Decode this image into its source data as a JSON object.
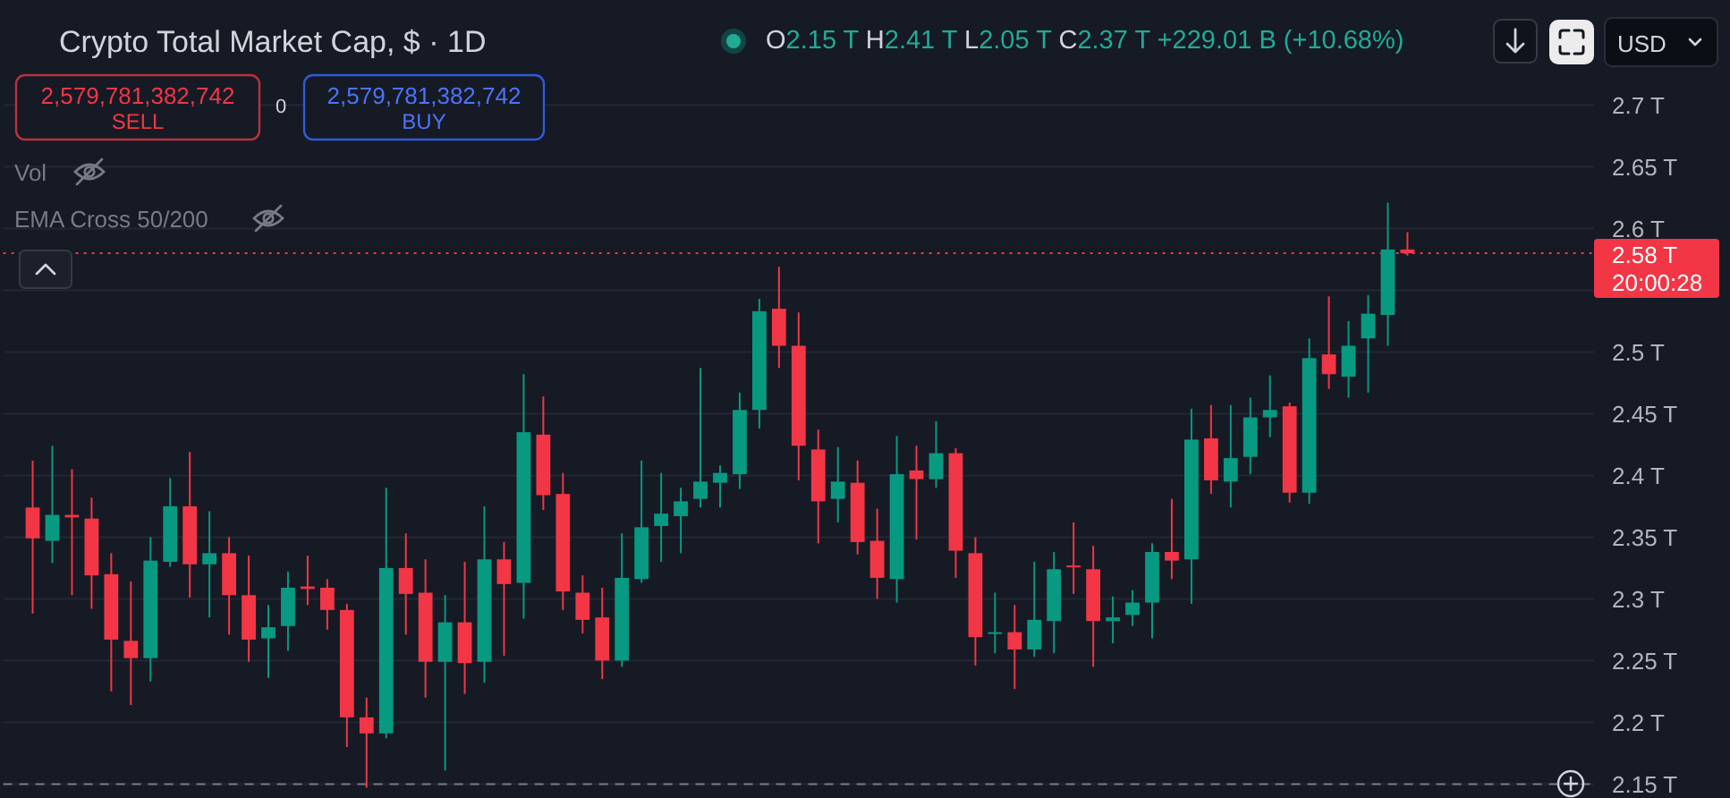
{
  "chart_data": {
    "type": "candlestick",
    "title": "Crypto Total Market Cap, $ · 1D",
    "subtitle": "O2.15 T H2.41 T L2.05 T C2.37 T +229.01 B (+10.68%)",
    "categories": [
      null,
      null,
      null,
      null,
      null,
      null,
      null,
      null,
      null,
      null,
      null,
      null,
      null,
      null,
      null,
      null,
      null,
      null,
      null,
      null,
      null,
      null,
      null,
      null,
      null,
      null,
      null,
      null,
      null,
      null,
      null,
      null,
      null,
      null,
      null,
      null,
      null,
      null,
      null,
      null,
      null,
      null,
      null,
      null,
      null,
      null,
      null,
      null,
      null,
      null,
      null,
      null,
      null,
      null,
      null,
      null,
      null,
      null,
      null,
      null,
      null,
      null,
      null,
      null,
      null,
      null,
      null,
      null,
      null,
      null,
      null,
      null,
      null,
      null,
      null,
      null,
      null,
      null,
      null,
      null,
      null
    ],
    "ohlc": [
      null,
      [
        2.374,
        2.412,
        2.288,
        2.349
      ],
      [
        2.347,
        2.424,
        2.329,
        2.368
      ],
      [
        2.368,
        2.405,
        2.303,
        2.366
      ],
      [
        2.365,
        2.382,
        2.292,
        2.319
      ],
      [
        2.32,
        2.337,
        2.225,
        2.267
      ],
      [
        2.266,
        2.314,
        2.214,
        2.252
      ],
      [
        2.252,
        2.35,
        2.233,
        2.331
      ],
      [
        2.33,
        2.398,
        2.326,
        2.375
      ],
      [
        2.375,
        2.419,
        2.301,
        2.328
      ],
      [
        2.328,
        2.371,
        2.285,
        2.337
      ],
      [
        2.337,
        2.35,
        2.271,
        2.303
      ],
      [
        2.303,
        2.335,
        2.249,
        2.267
      ],
      [
        2.268,
        2.295,
        2.236,
        2.277
      ],
      [
        2.278,
        2.322,
        2.258,
        2.309
      ],
      [
        2.31,
        2.335,
        2.295,
        2.308
      ],
      [
        2.309,
        2.316,
        2.275,
        2.291
      ],
      [
        2.291,
        2.296,
        2.18,
        2.204
      ],
      [
        2.204,
        2.22,
        2.147,
        2.191
      ],
      [
        2.191,
        2.39,
        2.187,
        2.325
      ],
      [
        2.325,
        2.353,
        2.271,
        2.304
      ],
      [
        2.305,
        2.332,
        2.22,
        2.249
      ],
      [
        2.249,
        2.303,
        2.161,
        2.281
      ],
      [
        2.281,
        2.33,
        2.223,
        2.248
      ],
      [
        2.249,
        2.375,
        2.232,
        2.332
      ],
      [
        2.332,
        2.346,
        2.254,
        2.312
      ],
      [
        2.313,
        2.482,
        2.284,
        2.435
      ],
      [
        2.433,
        2.464,
        2.372,
        2.384
      ],
      [
        2.385,
        2.402,
        2.291,
        2.306
      ],
      [
        2.305,
        2.319,
        2.272,
        2.283
      ],
      [
        2.285,
        2.309,
        2.235,
        2.25
      ],
      [
        2.25,
        2.353,
        2.245,
        2.317
      ],
      [
        2.316,
        2.412,
        2.313,
        2.358
      ],
      [
        2.359,
        2.402,
        2.33,
        2.369
      ],
      [
        2.367,
        2.39,
        2.337,
        2.379
      ],
      [
        2.381,
        2.487,
        2.374,
        2.395
      ],
      [
        2.394,
        2.408,
        2.374,
        2.402
      ],
      [
        2.401,
        2.467,
        2.389,
        2.453
      ],
      [
        2.453,
        2.543,
        2.438,
        2.533
      ],
      [
        2.535,
        2.569,
        2.487,
        2.505
      ],
      [
        2.505,
        2.532,
        2.396,
        2.424
      ],
      [
        2.421,
        2.437,
        2.345,
        2.379
      ],
      [
        2.381,
        2.423,
        2.362,
        2.395
      ],
      [
        2.394,
        2.412,
        2.336,
        2.346
      ],
      [
        2.347,
        2.373,
        2.3,
        2.317
      ],
      [
        2.316,
        2.432,
        2.297,
        2.401
      ],
      [
        2.404,
        2.424,
        2.348,
        2.397
      ],
      [
        2.397,
        2.444,
        2.39,
        2.418
      ],
      [
        2.418,
        2.422,
        2.317,
        2.339
      ],
      [
        2.337,
        2.35,
        2.246,
        2.269
      ],
      [
        2.272,
        2.305,
        2.256,
        2.273
      ],
      [
        2.273,
        2.295,
        2.227,
        2.259
      ],
      [
        2.259,
        2.33,
        2.253,
        2.283
      ],
      [
        2.282,
        2.338,
        2.256,
        2.324
      ],
      [
        2.327,
        2.362,
        2.304,
        2.326
      ],
      [
        2.324,
        2.343,
        2.245,
        2.282
      ],
      [
        2.282,
        2.302,
        2.264,
        2.285
      ],
      [
        2.287,
        2.307,
        2.278,
        2.297
      ],
      [
        2.297,
        2.345,
        2.268,
        2.338
      ],
      [
        2.338,
        2.381,
        2.316,
        2.331
      ],
      [
        2.332,
        2.454,
        2.296,
        2.429
      ],
      [
        2.43,
        2.457,
        2.385,
        2.396
      ],
      [
        2.395,
        2.457,
        2.374,
        2.414
      ],
      [
        2.415,
        2.463,
        2.401,
        2.447
      ],
      [
        2.447,
        2.481,
        2.431,
        2.453
      ],
      [
        2.456,
        2.459,
        2.378,
        2.386
      ],
      [
        2.386,
        2.511,
        2.377,
        2.495
      ],
      [
        2.498,
        2.545,
        2.47,
        2.482
      ],
      [
        2.48,
        2.525,
        2.463,
        2.505
      ],
      [
        2.511,
        2.546,
        2.467,
        2.531
      ],
      [
        2.53,
        2.621,
        2.505,
        2.583
      ],
      [
        2.583,
        2.597,
        2.578,
        2.58
      ],
      null,
      null,
      null,
      null,
      null,
      null,
      null,
      null,
      null
    ],
    "colors": [
      null,
      "#f23645",
      "#089981",
      "#f23645",
      "#f23645",
      "#f23645",
      "#f23645",
      "#089981",
      "#089981",
      "#f23645",
      "#089981",
      "#f23645",
      "#f23645",
      "#089981",
      "#089981",
      "#f23645",
      "#f23645",
      "#f23645",
      "#f23645",
      "#089981",
      "#f23645",
      "#f23645",
      "#089981",
      "#f23645",
      "#089981",
      "#f23645",
      "#089981",
      "#f23645",
      "#f23645",
      "#f23645",
      "#f23645",
      "#089981",
      "#089981",
      "#089981",
      "#089981",
      "#089981",
      "#089981",
      "#089981",
      "#089981",
      "#f23645",
      "#f23645",
      "#f23645",
      "#089981",
      "#f23645",
      "#f23645",
      "#089981",
      "#f23645",
      "#089981",
      "#f23645",
      "#f23645",
      "#089981",
      "#f23645",
      "#089981",
      "#089981",
      "#f23645",
      "#f23645",
      "#089981",
      "#089981",
      "#089981",
      "#f23645",
      "#089981",
      "#f23645",
      "#089981",
      "#089981",
      "#089981",
      "#f23645",
      "#089981",
      "#f23645",
      "#089981",
      "#089981",
      "#089981",
      "#f23645",
      null,
      null,
      null,
      null,
      null,
      null,
      null,
      null,
      null
    ],
    "ylim": [
      2.14,
      2.7
    ],
    "yticks": [
      {
        "value": 2.15,
        "label": "2.15 T"
      },
      {
        "value": 2.2,
        "label": "2.2 T"
      },
      {
        "value": 2.25,
        "label": "2.25 T"
      },
      {
        "value": 2.3,
        "label": "2.3 T"
      },
      {
        "value": 2.35,
        "label": "2.35 T"
      },
      {
        "value": 2.4,
        "label": "2.4 T"
      },
      {
        "value": 2.45,
        "label": "2.45 T"
      },
      {
        "value": 2.5,
        "label": "2.5 T"
      },
      {
        "value": 2.55,
        "label": null
      },
      {
        "value": 2.6,
        "label": "2.6 T"
      },
      {
        "value": 2.65,
        "label": "2.65 T"
      },
      {
        "value": 2.7,
        "label": "2.7 T"
      }
    ],
    "grid": "y",
    "tick_labels": "y",
    "ref_lines": [
      {
        "axis": "y",
        "value": 2.58,
        "label": "2.58 T",
        "color": "#f23645",
        "line_style": "dotted"
      },
      {
        "axis": "y",
        "value": 2.15,
        "color": "#787b86",
        "line_style": "dashed"
      }
    ],
    "annotations": [
      "USD",
      "2,579,781,382,742",
      "SELL",
      "0",
      "2,579,781,382,742",
      "BUY",
      "Vol",
      "EMA Cross 50/200",
      "20:00:28"
    ]
  }
}
